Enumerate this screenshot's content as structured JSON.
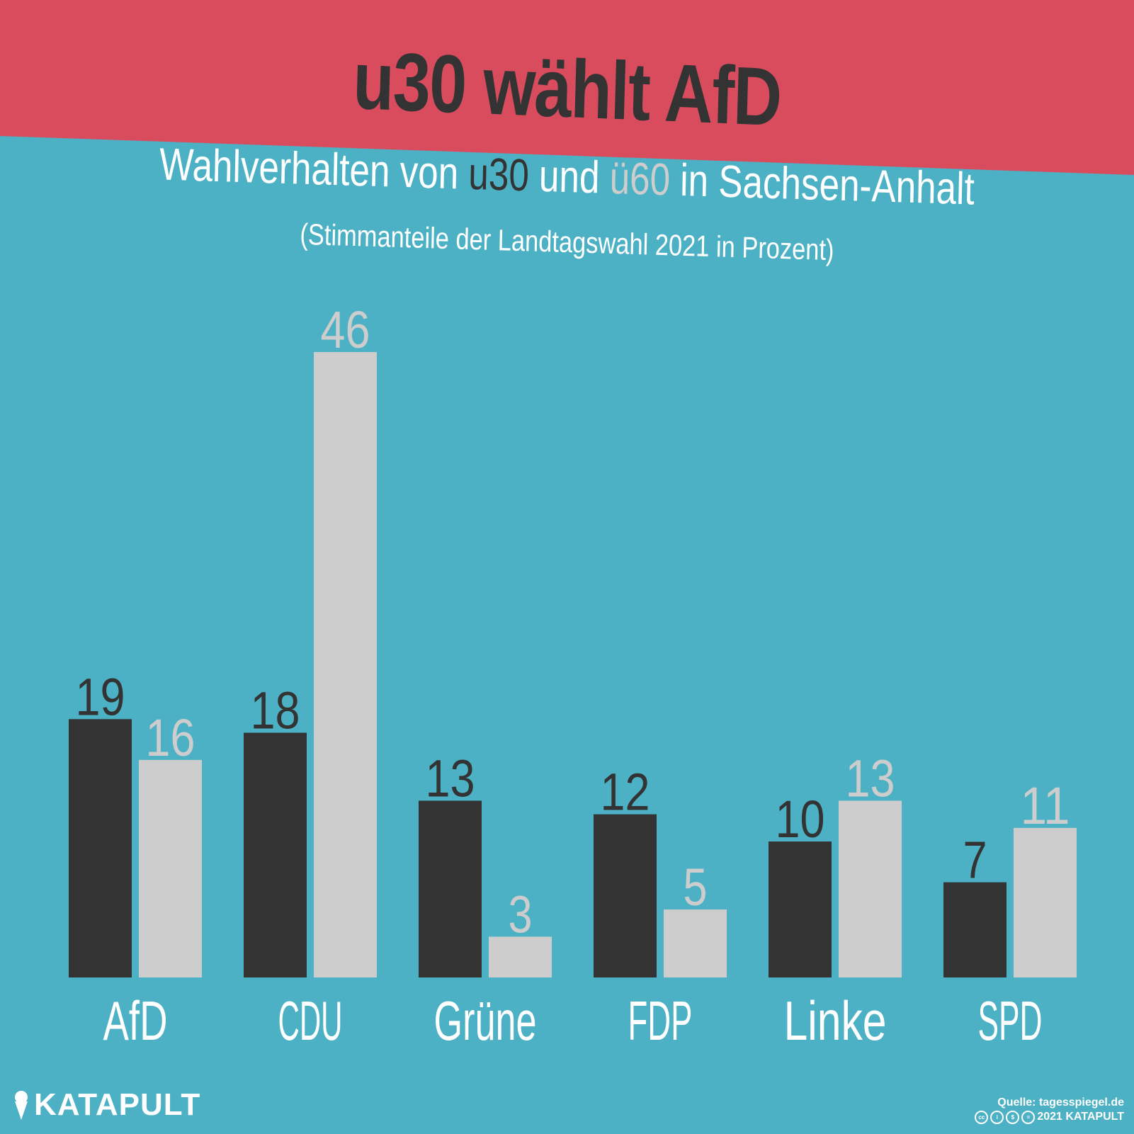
{
  "header": {
    "title": "u30 wählt AfD"
  },
  "subtitle": {
    "part1": "Wahlverhalten von ",
    "u30": "u30",
    "part2": " und ",
    "u60": "ü60",
    "part3": " in Sachsen-Anhalt"
  },
  "note": "(Stimmanteile der Landtagswahl 2021 in Prozent)",
  "colors": {
    "banner": "#d94c5e",
    "background": "#4cb1c4",
    "u30": "#333333",
    "u60": "#cdcdcd",
    "text": "#ffffff"
  },
  "chart_data": {
    "type": "bar",
    "categories": [
      "AfD",
      "CDU",
      "Grüne",
      "FDP",
      "Linke",
      "SPD"
    ],
    "series": [
      {
        "name": "u30",
        "values": [
          19,
          18,
          13,
          12,
          10,
          7
        ]
      },
      {
        "name": "ü60",
        "values": [
          16,
          46,
          3,
          5,
          13,
          11
        ]
      }
    ],
    "ylim": [
      0,
      46
    ],
    "grid": false,
    "data_labels": true
  },
  "footer": {
    "brand": "KATAPULT",
    "source": "Quelle: tagesspiegel.de",
    "copyright": "2021 KATAPULT",
    "license_icons": [
      "cc",
      "by",
      "nc",
      "nd"
    ]
  }
}
